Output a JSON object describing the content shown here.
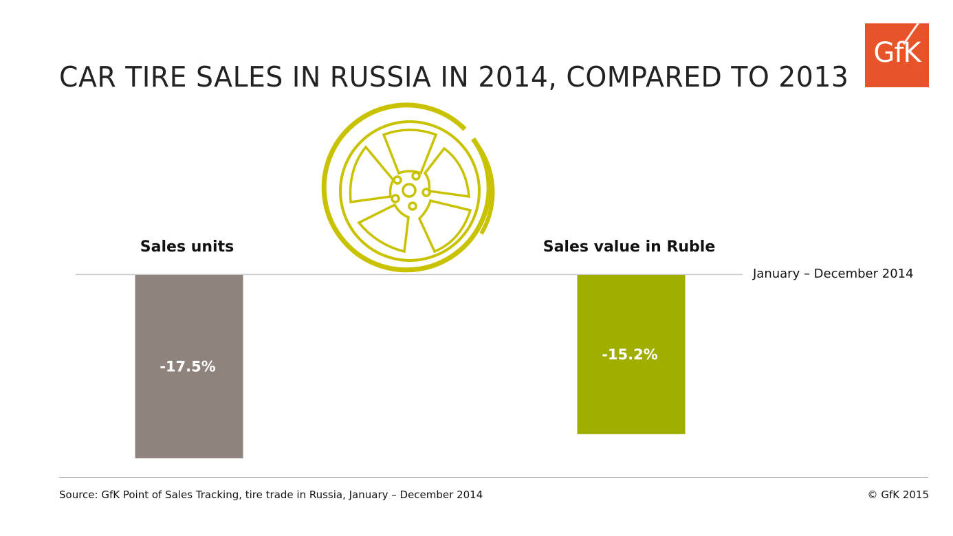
{
  "title": "CAR TIRE SALES IN RUSSIA IN 2014, COMPARED TO 2013",
  "logo": {
    "text": "GfK",
    "color": "#e8542a"
  },
  "icon": "tire-rim-icon",
  "colors": {
    "units": "#8f837d",
    "value": "#a0ae00",
    "icon": "#c8c200"
  },
  "chart_data": {
    "type": "bar",
    "title": "CAR TIRE SALES IN RUSSIA IN 2014, COMPARED TO 2013",
    "categories": [
      "Sales units",
      "Sales value in Ruble"
    ],
    "values": [
      -17.5,
      -15.2
    ],
    "data_labels": [
      "-17.5%",
      "-15.2%"
    ],
    "baseline_label": "January – December 2014",
    "ylim": [
      -20,
      0
    ],
    "grid": false,
    "legend": "none"
  },
  "footer": {
    "source": "Source: GfK Point of Sales Tracking, tire trade in Russia, January – December 2014",
    "copyright": "© GfK 2015"
  }
}
